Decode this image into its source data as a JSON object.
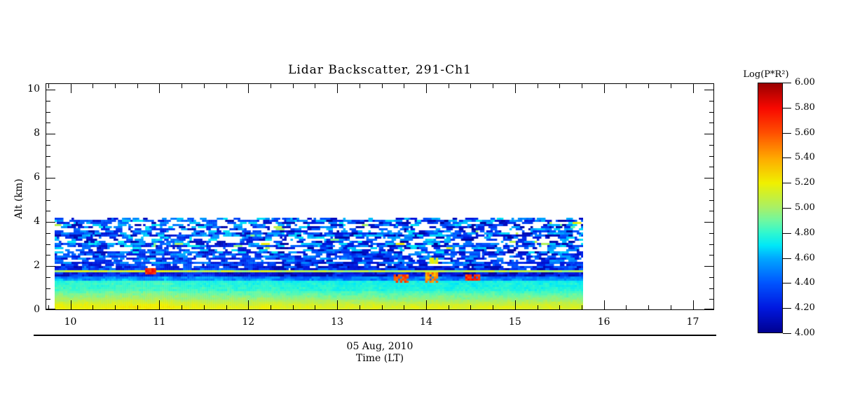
{
  "chart_data": {
    "type": "heatmap",
    "title": "Lidar Backscatter, 291-Ch1",
    "xlabel": "Time (LT)",
    "date_label": "05 Aug, 2010",
    "ylabel": "Alt (km)",
    "xlim": [
      9.72,
      17.24
    ],
    "ylim": [
      0,
      10.29
    ],
    "x_tick_values": [
      10,
      11,
      12,
      13,
      14,
      15,
      16,
      17
    ],
    "x_tick_labels": [
      "10",
      "11",
      "12",
      "13",
      "14",
      "15",
      "16",
      "17"
    ],
    "x_minor_step": 0.25,
    "y_tick_values": [
      0,
      2,
      4,
      6,
      8,
      10
    ],
    "y_tick_labels": [
      "0",
      "2",
      "4",
      "6",
      "8",
      "10"
    ],
    "y_minor_step": 0.5,
    "grid": false,
    "background_color": "#ffffff",
    "colorbar": {
      "label": "Log(P*R²)",
      "min": 4.0,
      "max": 6.0,
      "tick_values": [
        6.0,
        5.8,
        5.6,
        5.4,
        5.2,
        5.0,
        4.8,
        4.6,
        4.4,
        4.2,
        4.0
      ],
      "tick_labels": [
        "6.00",
        "5.80",
        "5.60",
        "5.40",
        "5.20",
        "5.00",
        "4.80",
        "4.60",
        "4.40",
        "4.20",
        "4.00"
      ],
      "stops": [
        [
          4.0,
          "#000090"
        ],
        [
          4.2,
          "#0018e0"
        ],
        [
          4.4,
          "#0055ff"
        ],
        [
          4.6,
          "#00aaff"
        ],
        [
          4.7,
          "#00e8f8"
        ],
        [
          4.8,
          "#30f8d0"
        ],
        [
          4.9,
          "#70f8a0"
        ],
        [
          5.0,
          "#a8f068"
        ],
        [
          5.2,
          "#f0f000"
        ],
        [
          5.4,
          "#ffa800"
        ],
        [
          5.6,
          "#ff5000"
        ],
        [
          5.8,
          "#f80800"
        ],
        [
          6.0,
          "#980000"
        ]
      ]
    },
    "data_extent": {
      "time": [
        9.82,
        15.76
      ],
      "alt": [
        0,
        4.19
      ]
    },
    "profile": [
      {
        "alt": [
          0.0,
          0.18
        ],
        "value": [
          5.18,
          5.18
        ],
        "noise": 0.02,
        "fill": 1.0
      },
      {
        "alt": [
          0.18,
          0.5
        ],
        "value": [
          5.18,
          5.0
        ],
        "noise": 0.02,
        "fill": 1.0
      },
      {
        "alt": [
          0.5,
          0.9
        ],
        "value": [
          5.0,
          4.84
        ],
        "noise": 0.03,
        "fill": 1.0
      },
      {
        "alt": [
          0.9,
          1.3
        ],
        "value": [
          4.82,
          4.78
        ],
        "noise": 0.03,
        "fill": 1.0
      },
      {
        "alt": [
          1.3,
          1.5
        ],
        "value": [
          4.58,
          4.52
        ],
        "noise": 0.1,
        "fill": 1.0
      },
      {
        "alt": [
          1.5,
          1.74
        ],
        "value": [
          4.22,
          4.22
        ],
        "noise": 0.16,
        "fill": 1.0
      },
      {
        "alt": [
          1.74,
          1.83
        ],
        "value": [
          5.08,
          5.08
        ],
        "noise": 0.09,
        "fill": 1.0
      },
      {
        "alt": [
          1.83,
          2.05
        ],
        "value": [
          4.3,
          4.3
        ],
        "noise": 0.22,
        "fill": 0.95
      },
      {
        "alt": [
          2.05,
          2.55
        ],
        "value": [
          4.35,
          4.35
        ],
        "noise": 0.25,
        "fill": 0.85
      },
      {
        "alt": [
          2.55,
          4.05
        ],
        "value": [
          4.38,
          4.38
        ],
        "noise": 0.34,
        "fill": 0.6
      },
      {
        "alt": [
          4.05,
          4.19
        ],
        "value": [
          4.4,
          4.4
        ],
        "noise": 0.3,
        "fill": 0.55
      }
    ],
    "hot_spots": [
      {
        "t": 10.89,
        "alt": 1.79,
        "value": 5.7,
        "w": 0.06,
        "h": 0.09
      },
      {
        "t": 13.7,
        "alt": 1.45,
        "value": 5.6,
        "w": 0.12,
        "h": 0.15
      },
      {
        "t": 14.05,
        "alt": 1.55,
        "value": 5.45,
        "w": 0.1,
        "h": 0.25
      },
      {
        "t": 14.07,
        "alt": 2.28,
        "value": 5.2,
        "w": 0.05,
        "h": 0.08
      },
      {
        "t": 14.5,
        "alt": 1.5,
        "value": 5.7,
        "w": 0.11,
        "h": 0.14
      }
    ],
    "noise_seed": 20100805
  }
}
